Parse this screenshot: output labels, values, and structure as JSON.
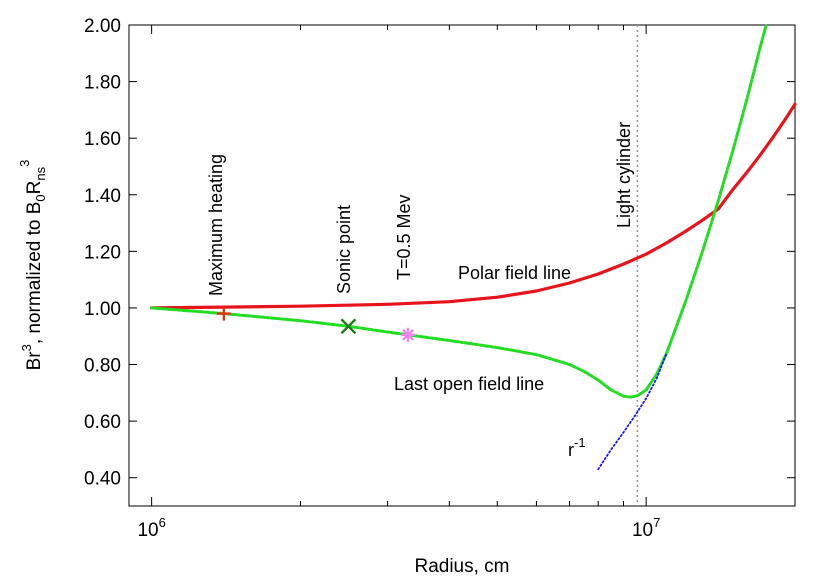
{
  "chart_data": {
    "type": "line",
    "xlabel": "Radius, cm",
    "ylabel": "Br3, normalized to B0Rns3",
    "ylabel_parts": {
      "b": "Br",
      "exp3": "3",
      "mid": ", normalized to B",
      "sub0": "0",
      "r": "R",
      "subns": "ns",
      "exp3b": "3"
    },
    "xscale": "log",
    "xlim": [
      900000,
      20000000
    ],
    "ylim": [
      0.3,
      2.0
    ],
    "x_ticks": [
      {
        "value": 1000000,
        "base": "10",
        "exp": "6"
      },
      {
        "value": 10000000,
        "base": "10",
        "exp": "7"
      }
    ],
    "y_ticks": [
      {
        "value": 0.4,
        "label": "0.40"
      },
      {
        "value": 0.6,
        "label": "0.60"
      },
      {
        "value": 0.8,
        "label": "0.80"
      },
      {
        "value": 1.0,
        "label": "1.00"
      },
      {
        "value": 1.2,
        "label": "1.20"
      },
      {
        "value": 1.4,
        "label": "1.40"
      },
      {
        "value": 1.6,
        "label": "1.60"
      },
      {
        "value": 1.8,
        "label": "1.80"
      },
      {
        "value": 2.0,
        "label": "2.00"
      }
    ],
    "grid": false,
    "series": [
      {
        "name": "Polar field line",
        "color": "#e8141c",
        "style": "solid",
        "x": [
          1000000,
          1400000,
          2000000,
          3000000,
          4000000,
          5000000,
          6000000,
          7000000,
          8000000,
          9000000,
          10000000,
          11000000,
          12000000,
          13000000,
          14000000,
          15000000,
          16000000,
          17000000,
          18000000,
          19000000,
          20000000
        ],
        "y": [
          1.0,
          1.003,
          1.006,
          1.013,
          1.022,
          1.038,
          1.06,
          1.088,
          1.12,
          1.155,
          1.19,
          1.23,
          1.27,
          1.31,
          1.35,
          1.42,
          1.48,
          1.54,
          1.6,
          1.66,
          1.72
        ]
      },
      {
        "name": "Last open field line",
        "color": "#22dd22",
        "style": "dash-dot",
        "x": [
          1000000,
          1400000,
          2000000,
          2500000,
          3000000,
          3300000,
          4000000,
          5000000,
          6000000,
          7000000,
          7500000,
          8000000,
          8500000,
          9000000,
          9300000,
          9600000,
          10000000,
          10500000,
          11000000,
          12000000,
          13000000,
          14000000,
          15000000,
          16000000,
          17000000,
          17500000
        ],
        "y": [
          1.0,
          0.98,
          0.955,
          0.935,
          0.915,
          0.905,
          0.885,
          0.86,
          0.835,
          0.8,
          0.775,
          0.745,
          0.71,
          0.688,
          0.685,
          0.69,
          0.71,
          0.765,
          0.84,
          1.02,
          1.2,
          1.38,
          1.56,
          1.74,
          1.92,
          2.0
        ]
      },
      {
        "name": "r-1",
        "color": "#1a1aee",
        "style": "dotted",
        "x": [
          8000000,
          8500000,
          9000000,
          9500000,
          10000000,
          10500000,
          11000000
        ],
        "y": [
          0.43,
          0.5,
          0.56,
          0.62,
          0.68,
          0.75,
          0.84
        ]
      }
    ],
    "markers": [
      {
        "name": "Maximum heating",
        "symbol": "+",
        "color": "#e03010",
        "x": 1400000,
        "y": 0.98
      },
      {
        "name": "Sonic point",
        "symbol": "x",
        "color": "#1a7a1a",
        "x": 2500000,
        "y": 0.935
      },
      {
        "name": "T=0.5 Mev",
        "symbol": "*",
        "color": "#ee82ee",
        "x": 3300000,
        "y": 0.905
      }
    ],
    "vline": {
      "x": 9600000,
      "label": "Light cylinder",
      "color": "#999999"
    },
    "annotations": {
      "max_heating": "Maximum heating",
      "sonic_point": "Sonic point",
      "temperature": "T=0.5 Mev",
      "light_cylinder": "Light cylinder",
      "polar": "Polar field line",
      "last_open": "Last open field line",
      "rinv_base": "r",
      "rinv_exp": "-1"
    }
  }
}
